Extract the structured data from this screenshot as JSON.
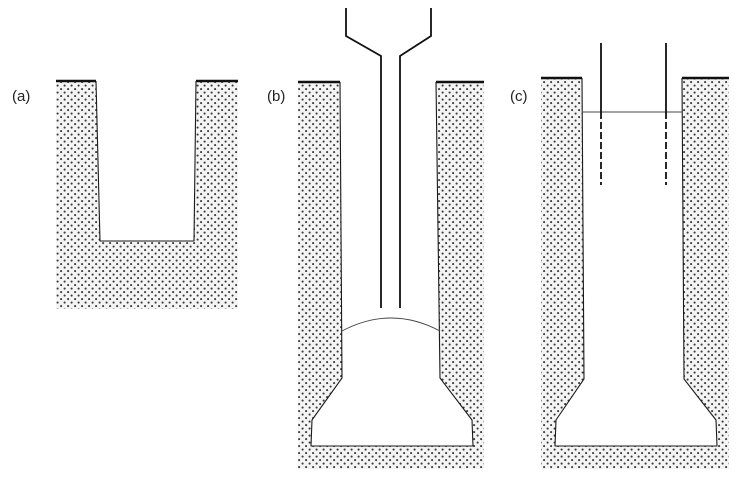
{
  "panels": [
    {
      "label": "(a)"
    },
    {
      "label": "(b)"
    },
    {
      "label": "(c)"
    }
  ],
  "colors": {
    "soil_dot": "#3a3a3a",
    "soil_background": "#f4f4f4",
    "line": "#111111"
  }
}
